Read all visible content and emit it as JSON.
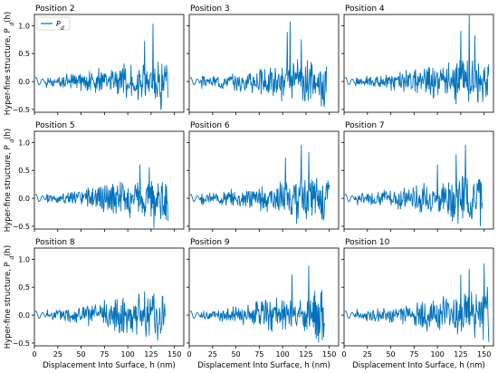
{
  "chart_data": {
    "type": "line",
    "layout": "3x3 grid of subplots, shared axes",
    "xlabel": "Displacement Into Surface, h (nm)",
    "ylabel": "Hyper-fine structure, P",
    "ylabel_sub": "d",
    "ylabel_suffix": "(h)",
    "legend": {
      "label": "P",
      "label_sub": "d",
      "location": "top-left of first panel"
    },
    "line_color": "#0072BD",
    "xlim": [
      0,
      160
    ],
    "ylim": [
      -0.55,
      1.2
    ],
    "xticks": [
      0,
      25,
      50,
      75,
      100,
      125,
      150
    ],
    "yticks": [
      -0.5,
      0.0,
      0.5,
      1.0
    ],
    "xtick_labels": [
      "0",
      "25",
      "50",
      "75",
      "100",
      "125",
      "150"
    ],
    "ytick_labels": [
      "−0.5",
      "0.0",
      "0.5",
      "1.0"
    ],
    "grid": false,
    "panels": [
      {
        "title": "Position 2",
        "xmax": 143,
        "seed": 2,
        "peaks": [
          [
            127,
            1.03
          ],
          [
            136,
            0.92
          ],
          [
            118,
            0.72
          ],
          [
            136,
            -0.46
          ]
        ]
      },
      {
        "title": "Position 3",
        "xmax": 147,
        "seed": 3,
        "peaks": [
          [
            108,
            1.07
          ],
          [
            105,
            0.88
          ],
          [
            120,
            0.75
          ],
          [
            124,
            -0.35
          ]
        ]
      },
      {
        "title": "Position 4",
        "xmax": 155,
        "seed": 4,
        "peaks": [
          [
            134,
            1.18
          ],
          [
            125,
            0.9
          ],
          [
            140,
            0.82
          ],
          [
            120,
            -0.4
          ]
        ]
      },
      {
        "title": "Position 5",
        "xmax": 143,
        "seed": 5,
        "peaks": [
          [
            128,
            1.08
          ],
          [
            123,
            0.55
          ],
          [
            113,
            0.6
          ],
          [
            128,
            -0.52
          ]
        ]
      },
      {
        "title": "Position 6",
        "xmax": 150,
        "seed": 6,
        "peaks": [
          [
            120,
            0.95
          ],
          [
            128,
            0.82
          ],
          [
            103,
            0.72
          ],
          [
            115,
            -0.45
          ]
        ]
      },
      {
        "title": "Position 7",
        "xmax": 148,
        "seed": 7,
        "peaks": [
          [
            130,
            0.95
          ],
          [
            120,
            0.78
          ],
          [
            100,
            0.6
          ],
          [
            122,
            -0.45
          ]
        ]
      },
      {
        "title": "Position 8",
        "xmax": 140,
        "seed": 8,
        "peaks": [
          [
            118,
            0.42
          ],
          [
            128,
            0.38
          ],
          [
            95,
            0.3
          ],
          [
            40,
            -0.05
          ],
          [
            132,
            -0.45
          ]
        ]
      },
      {
        "title": "Position 9",
        "xmax": 145,
        "seed": 9,
        "peaks": [
          [
            136,
            1.05
          ],
          [
            128,
            0.88
          ],
          [
            110,
            0.72
          ],
          [
            136,
            -0.42
          ]
        ]
      },
      {
        "title": "Position 10",
        "xmax": 155,
        "seed": 10,
        "peaks": [
          [
            150,
            0.92
          ],
          [
            134,
            0.82
          ],
          [
            125,
            0.72
          ],
          [
            140,
            -0.4
          ]
        ]
      }
    ]
  }
}
